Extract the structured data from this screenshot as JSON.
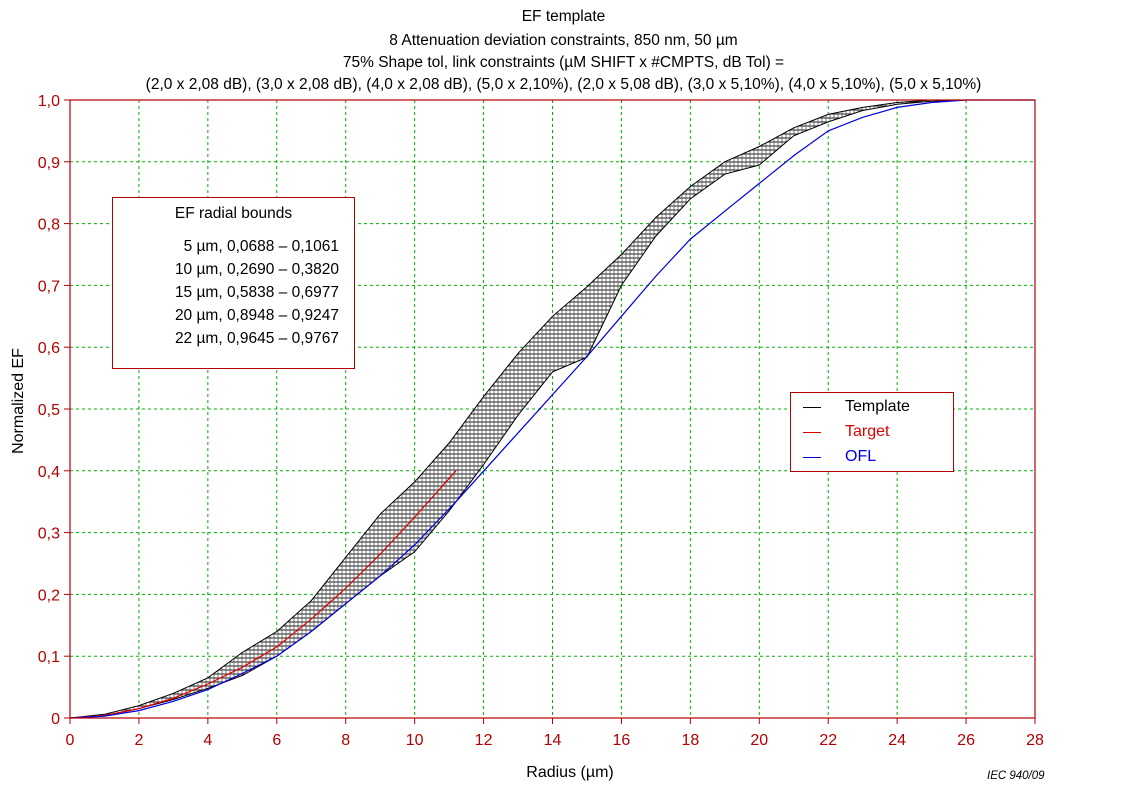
{
  "title_lines": [
    "EF template",
    "8 Attenuation deviation constraints, 850 nm, 50 µm",
    "75% Shape tol, link constraints (µM SHIFT x #CMPTS, dB Tol) =",
    "(2,0 x 2,08 dB), (3,0 x 2,08 dB), (4,0 x 2,08 dB), (5,0 x 2,10%), (2,0 x 5,08 dB), (3,0 x 5,10%), (4,0 x 5,10%), (5,0 x 5,10%)"
  ],
  "axes": {
    "xlabel": "Radius   (µm)",
    "ylabel": "Normalized EF"
  },
  "credit": "IEC  940/09",
  "bounds_box": {
    "title": "EF radial bounds",
    "rows": [
      "5 µm, 0,0688 – 0,1061",
      "10 µm, 0,2690 – 0,3820",
      "15 µm, 0,5838 – 0,6977",
      "20 µm, 0,8948 – 0,9247",
      "22 µm, 0,9645 – 0,9767"
    ]
  },
  "legend": [
    {
      "label": "Template",
      "color": "#000000"
    },
    {
      "label": "Target",
      "color": "#e00000"
    },
    {
      "label": "OFL",
      "color": "#0000e0"
    }
  ],
  "colors": {
    "axis": "#b40000",
    "grid": "#00b000",
    "tick_labels": "#b40000",
    "template": "#000000",
    "target": "#e00000",
    "ofl": "#0000e0"
  },
  "chart_data": {
    "type": "area",
    "xlim": [
      0,
      28
    ],
    "ylim": [
      0,
      1.0
    ],
    "x_ticks": [
      0,
      2,
      4,
      6,
      8,
      10,
      12,
      14,
      16,
      18,
      20,
      22,
      24,
      26,
      28
    ],
    "x_tick_labels": [
      "0",
      "2",
      "4",
      "6",
      "8",
      "10",
      "12",
      "14",
      "16",
      "18",
      "20",
      "22",
      "24",
      "26",
      "28"
    ],
    "y_ticks": [
      0,
      0.1,
      0.2,
      0.3,
      0.4,
      0.5,
      0.6,
      0.7,
      0.8,
      0.9,
      1.0
    ],
    "y_tick_labels": [
      "0",
      "0,1",
      "0,2",
      "0,3",
      "0,4",
      "0,5",
      "0,6",
      "0,7",
      "0,8",
      "0,9",
      "1,0"
    ],
    "grid": true,
    "legend_position": "right",
    "series": [
      {
        "name": "Template",
        "kind": "band",
        "x": [
          0,
          1,
          2,
          3,
          4,
          5,
          6,
          7,
          8,
          9,
          10,
          11,
          12,
          13,
          14,
          15,
          16,
          17,
          18,
          19,
          20,
          21,
          22,
          23,
          24,
          25,
          26,
          27,
          28
        ],
        "lower": [
          0,
          0.004,
          0.015,
          0.03,
          0.048,
          0.0688,
          0.1,
          0.14,
          0.185,
          0.23,
          0.269,
          0.335,
          0.41,
          0.49,
          0.56,
          0.5838,
          0.7,
          0.78,
          0.84,
          0.88,
          0.8948,
          0.942,
          0.9645,
          0.983,
          0.993,
          0.998,
          1.0,
          1.0,
          1.0
        ],
        "upper": [
          0,
          0.006,
          0.02,
          0.04,
          0.065,
          0.1061,
          0.14,
          0.19,
          0.26,
          0.33,
          0.382,
          0.445,
          0.52,
          0.59,
          0.65,
          0.6977,
          0.75,
          0.81,
          0.86,
          0.9,
          0.9247,
          0.955,
          0.9767,
          0.988,
          0.996,
          1.0,
          1.0,
          1.0,
          1.0
        ]
      },
      {
        "name": "Target",
        "kind": "line",
        "x": [
          0,
          1,
          2,
          3,
          4,
          5,
          6,
          7,
          8,
          9,
          10,
          11.2
        ],
        "y": [
          0,
          0.004,
          0.015,
          0.032,
          0.055,
          0.082,
          0.115,
          0.16,
          0.21,
          0.265,
          0.325,
          0.4
        ]
      },
      {
        "name": "OFL",
        "kind": "line",
        "x": [
          0,
          1,
          2,
          3,
          4,
          5,
          6,
          7,
          8,
          9,
          10,
          11.2,
          15,
          16,
          17,
          18,
          19,
          20,
          21,
          22,
          23,
          24,
          25,
          26,
          27,
          28
        ],
        "y": [
          0,
          0.003,
          0.012,
          0.027,
          0.046,
          0.072,
          0.1,
          0.14,
          0.185,
          0.23,
          0.28,
          0.35,
          0.585,
          0.65,
          0.715,
          0.775,
          0.82,
          0.865,
          0.91,
          0.95,
          0.972,
          0.988,
          0.996,
          1.0,
          1.0,
          1.0
        ]
      }
    ]
  }
}
